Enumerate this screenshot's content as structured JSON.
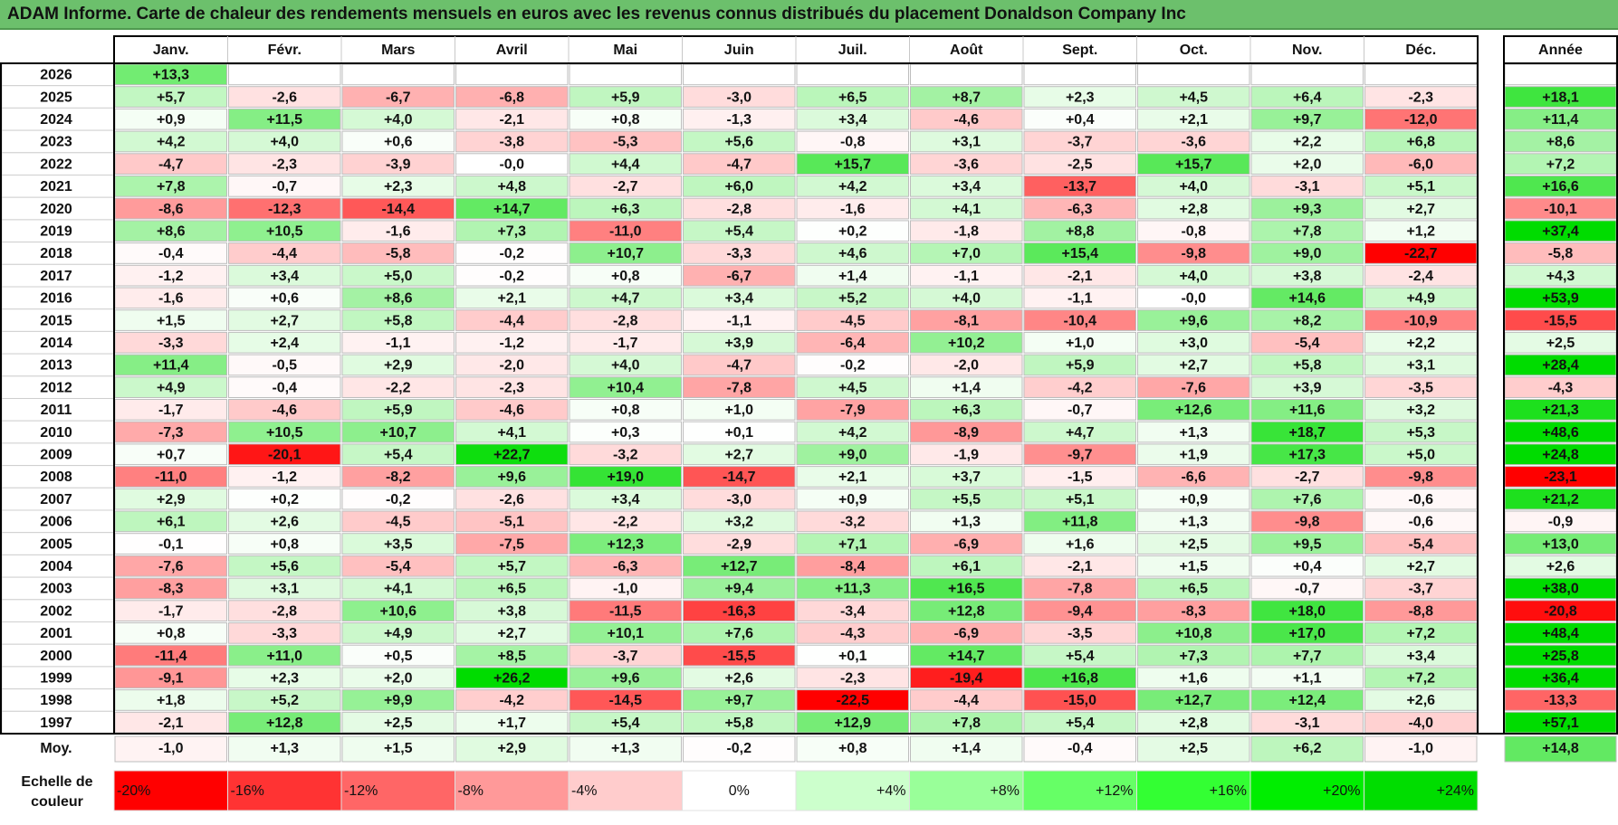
{
  "title": "ADAM Informe. Carte de chaleur des rendements mensuels en euros avec les revenus connus distribués du placement Donaldson Company Inc",
  "chart_data": {
    "type": "heatmap",
    "months": [
      "Janv.",
      "Févr.",
      "Mars",
      "Avril",
      "Mai",
      "Juin",
      "Juil.",
      "Août",
      "Sept.",
      "Oct.",
      "Nov.",
      "Déc."
    ],
    "year_header": "Année",
    "rows": [
      {
        "year": "2026",
        "values": [
          "+13,3",
          null,
          null,
          null,
          null,
          null,
          null,
          null,
          null,
          null,
          null,
          null
        ],
        "annual": null
      },
      {
        "year": "2025",
        "values": [
          "+5,7",
          "-2,6",
          "-6,7",
          "-6,8",
          "+5,9",
          "-3,0",
          "+6,5",
          "+8,7",
          "+2,3",
          "+4,5",
          "+6,4",
          "-2,3"
        ],
        "annual": "+18,1"
      },
      {
        "year": "2024",
        "values": [
          "+0,9",
          "+11,5",
          "+4,0",
          "-2,1",
          "+0,8",
          "-1,3",
          "+3,4",
          "-4,6",
          "+0,4",
          "+2,1",
          "+9,7",
          "-12,0"
        ],
        "annual": "+11,4"
      },
      {
        "year": "2023",
        "values": [
          "+4,2",
          "+4,0",
          "+0,6",
          "-3,8",
          "-5,3",
          "+5,6",
          "-0,8",
          "+3,1",
          "-3,7",
          "-3,6",
          "+2,2",
          "+6,8"
        ],
        "annual": "+8,6"
      },
      {
        "year": "2022",
        "values": [
          "-4,7",
          "-2,3",
          "-3,9",
          "-0,0",
          "+4,4",
          "-4,7",
          "+15,7",
          "-3,6",
          "-2,5",
          "+15,7",
          "+2,0",
          "-6,0"
        ],
        "annual": "+7,2"
      },
      {
        "year": "2021",
        "values": [
          "+7,8",
          "-0,7",
          "+2,3",
          "+4,8",
          "-2,7",
          "+6,0",
          "+4,2",
          "+3,4",
          "-13,7",
          "+4,0",
          "-3,1",
          "+5,1"
        ],
        "annual": "+16,6"
      },
      {
        "year": "2020",
        "values": [
          "-8,6",
          "-12,3",
          "-14,4",
          "+14,7",
          "+6,3",
          "-2,8",
          "-1,6",
          "+4,1",
          "-6,3",
          "+2,8",
          "+9,3",
          "+2,7"
        ],
        "annual": "-10,1"
      },
      {
        "year": "2019",
        "values": [
          "+8,6",
          "+10,5",
          "-1,6",
          "+7,3",
          "-11,0",
          "+5,4",
          "+0,2",
          "-1,8",
          "+8,8",
          "-0,8",
          "+7,8",
          "+1,2"
        ],
        "annual": "+37,4"
      },
      {
        "year": "2018",
        "values": [
          "-0,4",
          "-4,4",
          "-5,8",
          "-0,2",
          "+10,7",
          "-3,3",
          "+4,6",
          "+7,0",
          "+15,4",
          "-9,8",
          "+9,0",
          "-22,7"
        ],
        "annual": "-5,8"
      },
      {
        "year": "2017",
        "values": [
          "-1,2",
          "+3,4",
          "+5,0",
          "-0,2",
          "+0,8",
          "-6,7",
          "+1,4",
          "-1,1",
          "-2,1",
          "+4,0",
          "+3,8",
          "-2,4"
        ],
        "annual": "+4,3"
      },
      {
        "year": "2016",
        "values": [
          "-1,6",
          "+0,6",
          "+8,6",
          "+2,1",
          "+4,7",
          "+3,4",
          "+5,2",
          "+4,0",
          "-1,1",
          "-0,0",
          "+14,6",
          "+4,9"
        ],
        "annual": "+53,9"
      },
      {
        "year": "2015",
        "values": [
          "+1,5",
          "+2,7",
          "+5,8",
          "-4,4",
          "-2,8",
          "-1,1",
          "-4,5",
          "-8,1",
          "-10,4",
          "+9,6",
          "+8,2",
          "-10,9"
        ],
        "annual": "-15,5"
      },
      {
        "year": "2014",
        "values": [
          "-3,3",
          "+2,4",
          "-1,1",
          "-1,2",
          "-1,7",
          "+3,9",
          "-6,4",
          "+10,2",
          "+1,0",
          "+3,0",
          "-5,4",
          "+2,2"
        ],
        "annual": "+2,5"
      },
      {
        "year": "2013",
        "values": [
          "+11,4",
          "-0,5",
          "+2,9",
          "-2,0",
          "+4,0",
          "-4,7",
          "-0,2",
          "-2,0",
          "+5,9",
          "+2,7",
          "+5,8",
          "+3,1"
        ],
        "annual": "+28,4"
      },
      {
        "year": "2012",
        "values": [
          "+4,9",
          "-0,4",
          "-2,2",
          "-2,3",
          "+10,4",
          "-7,8",
          "+4,5",
          "+1,4",
          "-4,2",
          "-7,6",
          "+3,9",
          "-3,5"
        ],
        "annual": "-4,3"
      },
      {
        "year": "2011",
        "values": [
          "-1,7",
          "-4,6",
          "+5,9",
          "-4,6",
          "+0,8",
          "+1,0",
          "-7,9",
          "+6,3",
          "-0,7",
          "+12,6",
          "+11,6",
          "+3,2"
        ],
        "annual": "+21,3"
      },
      {
        "year": "2010",
        "values": [
          "-7,3",
          "+10,5",
          "+10,7",
          "+4,1",
          "+0,3",
          "+0,1",
          "+4,2",
          "-8,9",
          "+4,7",
          "+1,3",
          "+18,7",
          "+5,3"
        ],
        "annual": "+48,6"
      },
      {
        "year": "2009",
        "values": [
          "+0,7",
          "-20,1",
          "+5,4",
          "+22,7",
          "-3,2",
          "+2,7",
          "+9,0",
          "-1,9",
          "-9,7",
          "+1,9",
          "+17,3",
          "+5,0"
        ],
        "annual": "+24,8"
      },
      {
        "year": "2008",
        "values": [
          "-11,0",
          "-1,2",
          "-8,2",
          "+9,6",
          "+19,0",
          "-14,7",
          "+2,1",
          "+3,7",
          "-1,5",
          "-6,6",
          "-2,7",
          "-9,8"
        ],
        "annual": "-23,1"
      },
      {
        "year": "2007",
        "values": [
          "+2,9",
          "+0,2",
          "-0,2",
          "-2,6",
          "+3,4",
          "-3,0",
          "+0,9",
          "+5,5",
          "+5,1",
          "+0,9",
          "+7,6",
          "-0,6"
        ],
        "annual": "+21,2"
      },
      {
        "year": "2006",
        "values": [
          "+6,1",
          "+2,6",
          "-4,5",
          "-5,1",
          "-2,2",
          "+3,2",
          "-3,2",
          "+1,3",
          "+11,8",
          "+1,3",
          "-9,8",
          "-0,6"
        ],
        "annual": "-0,9"
      },
      {
        "year": "2005",
        "values": [
          "-0,1",
          "+0,8",
          "+3,5",
          "-7,5",
          "+12,3",
          "-2,9",
          "+7,1",
          "-6,9",
          "+1,6",
          "+2,5",
          "+9,5",
          "-5,4"
        ],
        "annual": "+13,0"
      },
      {
        "year": "2004",
        "values": [
          "-7,6",
          "+5,6",
          "-5,4",
          "+5,7",
          "-6,3",
          "+12,7",
          "-8,4",
          "+6,1",
          "-2,1",
          "+1,5",
          "+0,4",
          "+2,7"
        ],
        "annual": "+2,6"
      },
      {
        "year": "2003",
        "values": [
          "-8,3",
          "+3,1",
          "+4,1",
          "+6,5",
          "-1,0",
          "+9,4",
          "+11,3",
          "+16,5",
          "-7,8",
          "+6,5",
          "-0,7",
          "-3,7"
        ],
        "annual": "+38,0"
      },
      {
        "year": "2002",
        "values": [
          "-1,7",
          "-2,8",
          "+10,6",
          "+3,8",
          "-11,5",
          "-16,3",
          "-3,4",
          "+12,8",
          "-9,4",
          "-8,3",
          "+18,0",
          "-8,8"
        ],
        "annual": "-20,8"
      },
      {
        "year": "2001",
        "values": [
          "+0,8",
          "-3,3",
          "+4,9",
          "+2,7",
          "+10,1",
          "+7,6",
          "-4,3",
          "-6,9",
          "-3,5",
          "+10,8",
          "+17,0",
          "+7,2"
        ],
        "annual": "+48,4"
      },
      {
        "year": "2000",
        "values": [
          "-11,4",
          "+11,0",
          "+0,5",
          "+8,5",
          "-3,7",
          "-15,5",
          "+0,1",
          "+14,7",
          "+5,4",
          "+7,3",
          "+7,7",
          "+3,4"
        ],
        "annual": "+25,8"
      },
      {
        "year": "1999",
        "values": [
          "-9,1",
          "+2,3",
          "+2,0",
          "+26,2",
          "+9,6",
          "+2,6",
          "-2,3",
          "-19,4",
          "+16,8",
          "+1,6",
          "+1,1",
          "+7,2"
        ],
        "annual": "+36,4"
      },
      {
        "year": "1998",
        "values": [
          "+1,8",
          "+5,2",
          "+9,9",
          "-4,2",
          "-14,5",
          "+9,7",
          "-22,5",
          "-4,4",
          "-15,0",
          "+12,7",
          "+12,4",
          "+2,6"
        ],
        "annual": "-13,3"
      },
      {
        "year": "1997",
        "values": [
          "-2,1",
          "+12,8",
          "+2,5",
          "+1,7",
          "+5,4",
          "+5,8",
          "+12,9",
          "+7,8",
          "+5,4",
          "+2,8",
          "-3,1",
          "-4,0"
        ],
        "annual": "+57,1"
      }
    ],
    "average": {
      "label": "Moy.",
      "values": [
        "-1,0",
        "+1,3",
        "+1,5",
        "+2,9",
        "+1,3",
        "-0,2",
        "+0,8",
        "+1,4",
        "-0,4",
        "+2,5",
        "+6,2",
        "-1,0"
      ],
      "annual": "+14,8"
    },
    "scale": {
      "label_line1": "Echelle de",
      "label_line2": "couleur",
      "steps": [
        {
          "label": "-20%",
          "value": -20,
          "color": "#ff0000"
        },
        {
          "label": "-16%",
          "value": -16,
          "color": "#ff3333"
        },
        {
          "label": "-12%",
          "value": -12,
          "color": "#ff6666"
        },
        {
          "label": "-8%",
          "value": -8,
          "color": "#ff9999"
        },
        {
          "label": "-4%",
          "value": -4,
          "color": "#ffcccc"
        },
        {
          "label": "0%",
          "value": 0,
          "color": "#ffffff"
        },
        {
          "label": "+4%",
          "value": 4,
          "color": "#ccffcc"
        },
        {
          "label": "+8%",
          "value": 8,
          "color": "#99ff99"
        },
        {
          "label": "+12%",
          "value": 12,
          "color": "#66ff66"
        },
        {
          "label": "+16%",
          "value": 16,
          "color": "#33ff33"
        },
        {
          "label": "+20%",
          "value": 20,
          "color": "#00ee00"
        },
        {
          "label": "+24%",
          "value": 24,
          "color": "#00dd00"
        }
      ]
    }
  }
}
